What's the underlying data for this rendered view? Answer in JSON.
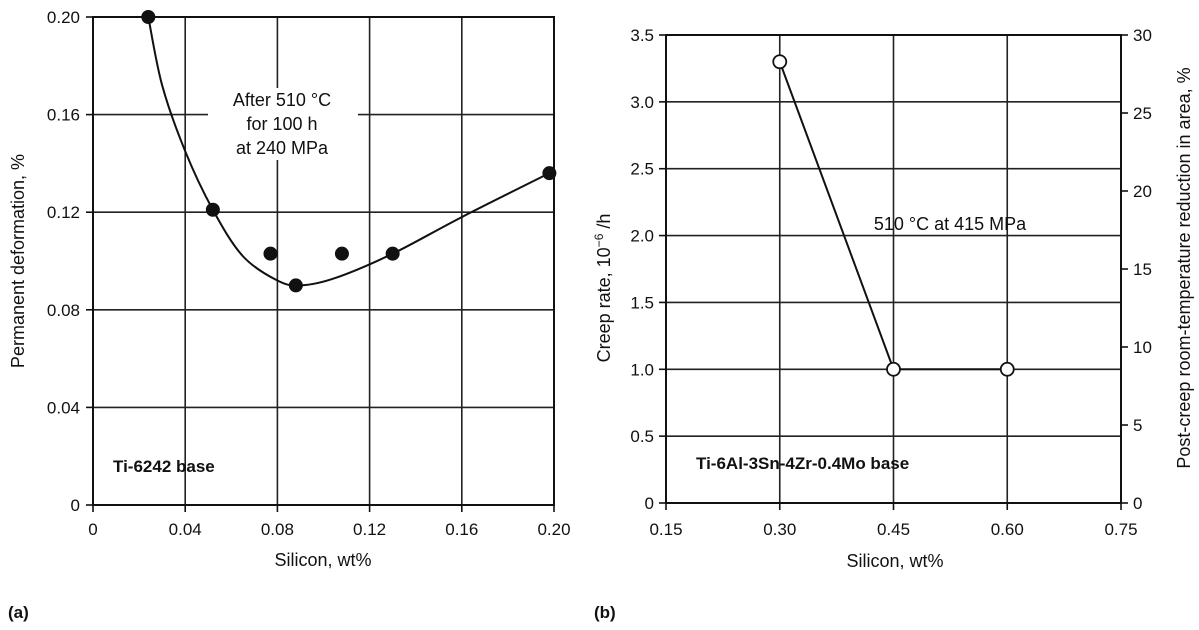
{
  "chart_data": [
    {
      "type": "scatter",
      "panel_label": "(a)",
      "xlabel": "Silicon, wt%",
      "ylabel": "Permanent deformation, %",
      "xlim": [
        0,
        0.2
      ],
      "ylim": [
        0,
        0.2
      ],
      "xticks": [
        0,
        0.04,
        0.08,
        0.12,
        0.16,
        0.2
      ],
      "xtick_labels": [
        "0",
        "0.04",
        "0.08",
        "0.12",
        "0.16",
        "0.20"
      ],
      "yticks": [
        0,
        0.04,
        0.08,
        0.12,
        0.16,
        0.2
      ],
      "ytick_labels": [
        "0",
        "0.04",
        "0.08",
        "0.12",
        "0.16",
        "0.20"
      ],
      "grid": true,
      "points": [
        {
          "x": 0.024,
          "y": 0.2
        },
        {
          "x": 0.052,
          "y": 0.121
        },
        {
          "x": 0.077,
          "y": 0.103
        },
        {
          "x": 0.088,
          "y": 0.09
        },
        {
          "x": 0.108,
          "y": 0.103
        },
        {
          "x": 0.13,
          "y": 0.103
        },
        {
          "x": 0.198,
          "y": 0.136
        }
      ],
      "fit_curve": [
        {
          "x": 0.024,
          "y": 0.2
        },
        {
          "x": 0.03,
          "y": 0.172
        },
        {
          "x": 0.04,
          "y": 0.145
        },
        {
          "x": 0.052,
          "y": 0.121
        },
        {
          "x": 0.065,
          "y": 0.102
        },
        {
          "x": 0.08,
          "y": 0.092
        },
        {
          "x": 0.09,
          "y": 0.09
        },
        {
          "x": 0.105,
          "y": 0.093
        },
        {
          "x": 0.13,
          "y": 0.103
        },
        {
          "x": 0.16,
          "y": 0.118
        },
        {
          "x": 0.198,
          "y": 0.136
        }
      ],
      "annotation_lines": [
        "After 510 °C",
        "for 100 h",
        "at 240 MPa"
      ],
      "base_label": "Ti-6242 base"
    },
    {
      "type": "line",
      "panel_label": "(b)",
      "xlabel": "Silicon, wt%",
      "ylabel_prefix": "Creep rate, 10",
      "ylabel_exp": "−6",
      "ylabel_suffix": " /h",
      "y2label": "Post-creep room-temperature reduction in area, %",
      "xlim": [
        0.15,
        0.75
      ],
      "ylim": [
        0,
        3.5
      ],
      "y2lim": [
        0,
        30
      ],
      "xticks": [
        0.15,
        0.3,
        0.45,
        0.6,
        0.75
      ],
      "xtick_labels": [
        "0.15",
        "0.30",
        "0.45",
        "0.60",
        "0.75"
      ],
      "yticks": [
        0,
        0.5,
        1.0,
        1.5,
        2.0,
        2.5,
        3.0,
        3.5
      ],
      "ytick_labels": [
        "0",
        "0.5",
        "1.0",
        "1.5",
        "2.0",
        "2.5",
        "3.0",
        "3.5"
      ],
      "y2ticks": [
        0,
        5,
        10,
        15,
        20,
        25,
        30
      ],
      "y2tick_labels": [
        "0",
        "5",
        "10",
        "15",
        "20",
        "25",
        "30"
      ],
      "grid": true,
      "points": [
        {
          "x": 0.3,
          "y": 3.3
        },
        {
          "x": 0.45,
          "y": 1.0
        },
        {
          "x": 0.6,
          "y": 1.0
        }
      ],
      "annotation": "510 °C at 415 MPa",
      "base_label": "Ti-6Al-3Sn-4Zr-0.4Mo base"
    }
  ]
}
